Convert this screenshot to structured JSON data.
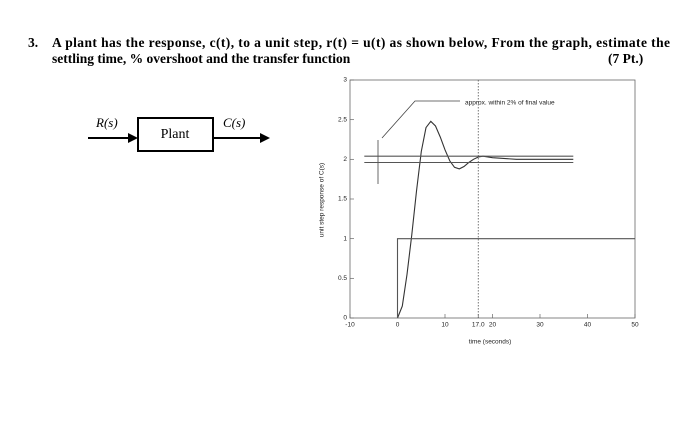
{
  "question": {
    "number": "3.",
    "line1": "A plant has the response, c(t), to a unit step, r(t) = u(t) as shown below, From the graph, estimate the",
    "line2": "settling time, % overshoot and the transfer function",
    "points": "(7 Pt.)"
  },
  "diagram": {
    "input": "R(s)",
    "block": "Plant",
    "output": "C(s)"
  },
  "chart_data": {
    "type": "line",
    "ylabel": "unit step response of C(s)",
    "xlabel": "time (seconds)",
    "annotation": "approx. within 2% of final value",
    "xlim": [
      -10,
      50
    ],
    "ylim": [
      0,
      3
    ],
    "xticks": [
      -10,
      0,
      10,
      {
        "value": 17,
        "label": "17.0"
      },
      20,
      30,
      40,
      50
    ],
    "yticks": [
      0,
      0.5,
      1,
      1.5,
      2,
      2.5,
      3
    ],
    "vline": 17,
    "series": [
      {
        "color": "#333333",
        "x": [
          0,
          1,
          2,
          3,
          4,
          5,
          6,
          7,
          8,
          9,
          10,
          11,
          12,
          13,
          14,
          15,
          16,
          17,
          18,
          20,
          25,
          30,
          37
        ],
        "values": [
          0,
          0.15,
          0.55,
          1.05,
          1.6,
          2.1,
          2.4,
          2.48,
          2.42,
          2.28,
          2.12,
          1.98,
          1.9,
          1.88,
          1.91,
          1.96,
          2.0,
          2.03,
          2.04,
          2.02,
          2.0,
          2.0,
          2.0
        ]
      },
      {
        "color": "#555555",
        "x": [
          0,
          0,
          50
        ],
        "values": [
          0,
          1,
          1
        ]
      },
      {
        "color": "#555555",
        "x": [
          -7,
          37
        ],
        "values": [
          2.04,
          2.04
        ]
      },
      {
        "color": "#555555",
        "x": [
          -7,
          37
        ],
        "values": [
          1.96,
          1.96
        ]
      }
    ]
  }
}
